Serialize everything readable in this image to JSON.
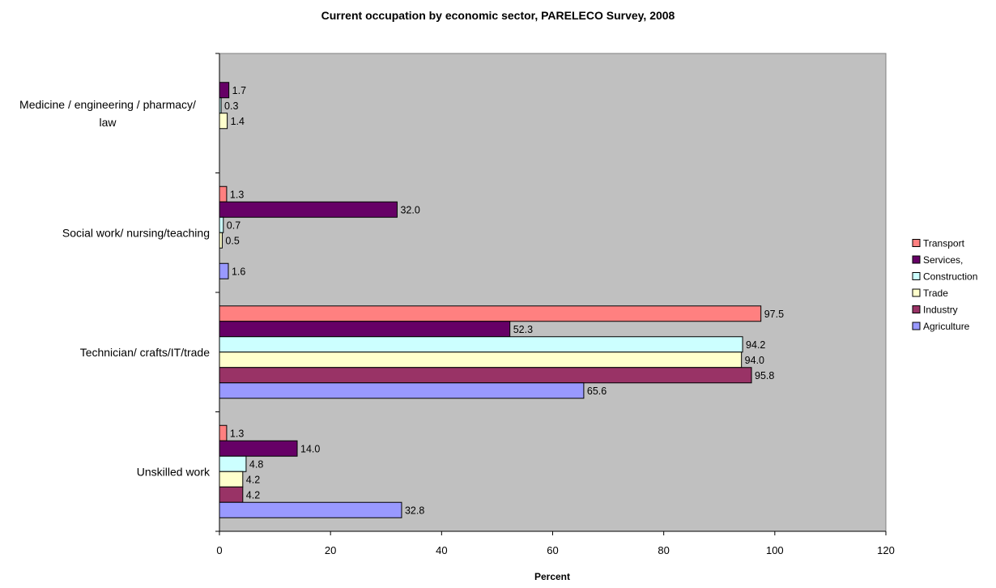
{
  "chart_data": {
    "type": "bar",
    "orientation": "horizontal",
    "title": "Current occupation by economic sector, PARELECO Survey, 2008",
    "xlabel": "Percent",
    "ylabel": "",
    "xlim": [
      0,
      120
    ],
    "x_ticks": [
      "0",
      "20",
      "40",
      "60",
      "80",
      "100",
      "120"
    ],
    "grid": false,
    "legend_position": "right",
    "categories": [
      [
        "Medicine / engineering / pharmacy/",
        "law"
      ],
      [
        "Social work/ nursing/teaching"
      ],
      [
        "Technician/ crafts/IT/trade"
      ],
      [
        "Unskilled work"
      ]
    ],
    "series": [
      {
        "name": "Transport",
        "color": "#FF8080",
        "values": [
          null,
          1.3,
          97.5,
          1.3
        ],
        "labels": [
          null,
          "1.3",
          "97.5",
          "1.3"
        ]
      },
      {
        "name": "Services,",
        "color": "#660066",
        "values": [
          1.7,
          32.0,
          52.3,
          14.0
        ],
        "labels": [
          "1.7",
          "32.0",
          "52.3",
          "14.0"
        ]
      },
      {
        "name": "Construction",
        "color": "#CCFFFF",
        "values": [
          0.3,
          0.7,
          94.2,
          4.8
        ],
        "labels": [
          "0.3",
          "0.7",
          "94.2",
          "4.8"
        ]
      },
      {
        "name": "Trade",
        "color": "#FFFFCC",
        "values": [
          1.4,
          0.5,
          94.0,
          4.2
        ],
        "labels": [
          "1.4",
          "0.5",
          "94.0",
          "4.2"
        ]
      },
      {
        "name": "Industry",
        "color": "#993366",
        "values": [
          null,
          null,
          95.8,
          4.2
        ],
        "labels": [
          null,
          null,
          "95.8",
          "4.2"
        ]
      },
      {
        "name": "Agriculture",
        "color": "#9999FF",
        "values": [
          null,
          1.6,
          65.6,
          32.8
        ],
        "labels": [
          null,
          "1.6",
          "65.6",
          "32.8"
        ]
      }
    ],
    "colors": {
      "plot_background": "#C0C0C0",
      "page_background": "#FFFFFF",
      "bar_border": "#000000"
    }
  }
}
